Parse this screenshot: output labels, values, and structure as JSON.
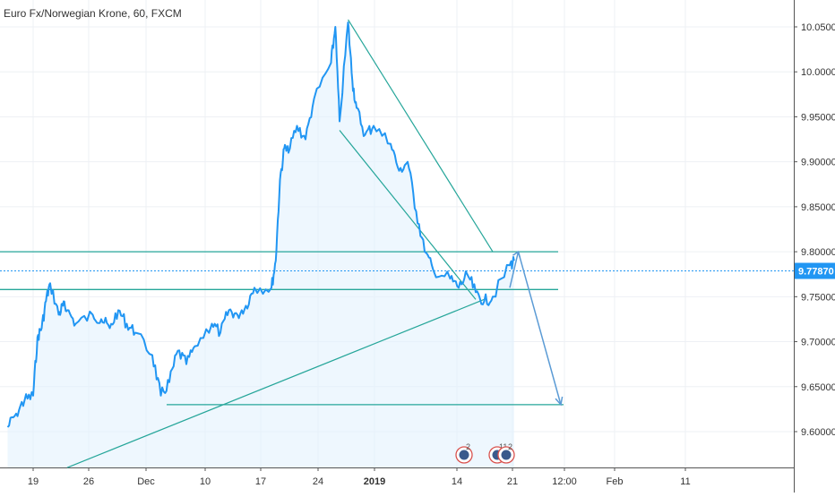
{
  "chart_data": {
    "type": "line",
    "title": "Euro Fx/Norwegian Krone, 60, FXCM",
    "series": [
      {
        "x": [
          "Nov 16",
          "Nov 17",
          "Nov 18",
          "Nov 19",
          "Nov 19",
          "Nov 20",
          "Nov 20",
          "Nov 21",
          "Nov 22",
          "Nov 22",
          "Nov 23",
          "Nov 24",
          "Nov 26",
          "Nov 27",
          "Nov 28",
          "Nov 29",
          "Nov 30",
          "Dec 1",
          "Dec 3",
          "Dec 4",
          "Dec 5",
          "Dec 6",
          "Dec 7",
          "Dec 8",
          "Dec 10",
          "Dec 11",
          "Dec 12",
          "Dec 13",
          "Dec 14",
          "Dec 15",
          "Dec 17",
          "Dec 17",
          "Dec 18",
          "Dec 18",
          "Dec 19",
          "Dec 20",
          "Dec 21",
          "Dec 22",
          "Dec 24",
          "Dec 24",
          "Dec 25",
          "Dec 26",
          "Dec 26",
          "Dec 27",
          "Dec 28",
          "Dec 29",
          "Dec 31",
          "Jan 1",
          "Jan 2",
          "Jan 3",
          "Jan 4",
          "Jan 5",
          "Jan 7",
          "Jan 8",
          "Jan 9",
          "Jan 10",
          "Jan 11",
          "Jan 12",
          "Jan 14",
          "Jan 14"
        ],
        "values": [
          9.605,
          9.62,
          9.635,
          9.64,
          9.705,
          9.715,
          9.745,
          9.765,
          9.73,
          9.74,
          9.735,
          9.72,
          9.73,
          9.725,
          9.715,
          9.735,
          9.72,
          9.71,
          9.685,
          9.64,
          9.655,
          9.69,
          9.675,
          9.695,
          9.72,
          9.71,
          9.735,
          9.73,
          9.74,
          9.76,
          9.76,
          9.79,
          9.88,
          9.915,
          9.91,
          9.94,
          9.925,
          9.97,
          10.01,
          10.05,
          9.945,
          10.055,
          9.99,
          9.96,
          9.93,
          9.94,
          9.92,
          9.89,
          9.9,
          9.845,
          9.8,
          9.78,
          9.77,
          9.76,
          9.775,
          9.755,
          9.745,
          9.75,
          9.785,
          9.79
        ]
      }
    ],
    "current_price": "9.77870",
    "y_ticks": [
      "9.60000",
      "9.65000",
      "9.70000",
      "9.75000",
      "9.80000",
      "9.85000",
      "9.90000",
      "9.95000",
      "10.00000",
      "10.05000"
    ],
    "x_ticks": [
      "19",
      "26",
      "Dec",
      "10",
      "17",
      "24",
      "2019",
      "14",
      "21",
      "12:00",
      "Feb",
      "11"
    ],
    "horizontal_levels": [
      9.8,
      9.758,
      9.63
    ],
    "trendlines": [
      {
        "from": [
          "Nov 23",
          9.56
        ],
        "to": [
          "Jan 11",
          9.747
        ]
      },
      {
        "from": [
          "Dec 26",
          10.058
        ],
        "to": [
          "Jan 12",
          9.8
        ]
      },
      {
        "from": [
          "Dec 25",
          9.935
        ],
        "to": [
          "Jan 10",
          9.747
        ]
      }
    ],
    "projection_arrow": {
      "points": [
        [
          "Jan 14",
          9.76
        ],
        [
          "Jan 15",
          9.8
        ],
        [
          "Jan 20",
          9.63
        ]
      ]
    },
    "event_markers": [
      "2",
      "11",
      "2"
    ],
    "colors": {
      "line": "#2196f3",
      "area": "#e3f2fd",
      "levels": "#26a69a",
      "arrow": "#5b9bd5",
      "price_label": "#2196f3",
      "dotted": "#2196f3"
    },
    "grid": true,
    "legend": "none"
  }
}
